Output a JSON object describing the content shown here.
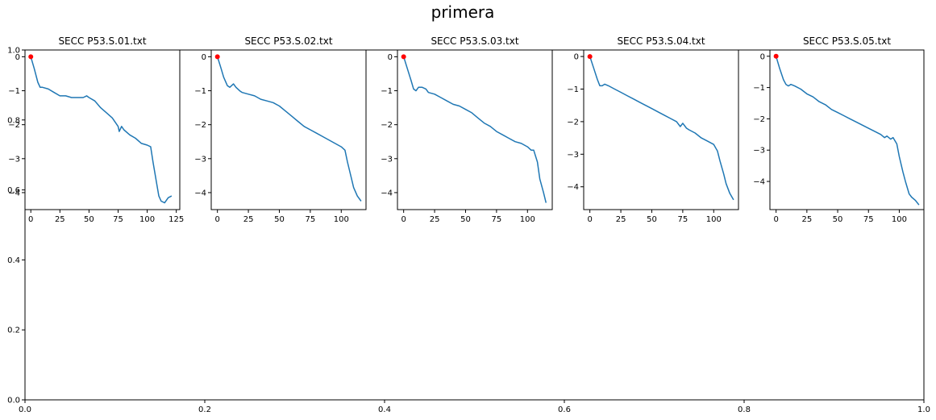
{
  "figure": {
    "suptitle": "primera"
  },
  "background_axis": {
    "xlim": [
      0,
      1
    ],
    "ylim": [
      0,
      1
    ],
    "x_ticks": [
      "0.0",
      "0.2",
      "0.4",
      "0.6",
      "0.8",
      "1.0"
    ],
    "y_ticks": [
      "0.0",
      "0.2",
      "0.4",
      "0.6",
      "0.8",
      "1.0"
    ]
  },
  "colors": {
    "line": "#1f77b4",
    "marker": "#ff0000",
    "axes": "#000000"
  },
  "chart_data": [
    {
      "type": "line",
      "title": "SECC P53.S.01.txt",
      "xlim": [
        -5,
        128
      ],
      "ylim": [
        -4.5,
        0.2
      ],
      "x_ticks": [
        0,
        25,
        50,
        75,
        100,
        125
      ],
      "y_ticks": [
        0,
        -1,
        -2,
        -3,
        -4
      ],
      "marker_point": [
        0,
        0
      ],
      "x": [
        0,
        3,
        6,
        8,
        10,
        15,
        20,
        25,
        30,
        35,
        40,
        45,
        48,
        50,
        55,
        60,
        65,
        70,
        73,
        75,
        76,
        78,
        80,
        85,
        90,
        95,
        100,
        103,
        105,
        108,
        110,
        112,
        115,
        118,
        121
      ],
      "y": [
        0,
        -0.35,
        -0.75,
        -0.9,
        -0.9,
        -0.95,
        -1.05,
        -1.15,
        -1.15,
        -1.2,
        -1.2,
        -1.2,
        -1.15,
        -1.2,
        -1.3,
        -1.5,
        -1.65,
        -1.8,
        -1.95,
        -2.05,
        -2.2,
        -2.05,
        -2.15,
        -2.3,
        -2.4,
        -2.55,
        -2.6,
        -2.65,
        -3.1,
        -3.7,
        -4.1,
        -4.25,
        -4.3,
        -4.15,
        -4.1
      ]
    },
    {
      "type": "line",
      "title": "SECC P53.S.02.txt",
      "xlim": [
        -5,
        120
      ],
      "ylim": [
        -4.5,
        0.2
      ],
      "x_ticks": [
        0,
        25,
        50,
        75,
        100
      ],
      "y_ticks": [
        0,
        -1,
        -2,
        -3,
        -4
      ],
      "marker_point": [
        0,
        0
      ],
      "x": [
        0,
        3,
        5,
        8,
        10,
        13,
        15,
        18,
        20,
        25,
        30,
        35,
        40,
        45,
        50,
        55,
        60,
        65,
        70,
        75,
        80,
        85,
        90,
        95,
        100,
        103,
        105,
        108,
        110,
        113,
        116
      ],
      "y": [
        0,
        -0.35,
        -0.6,
        -0.85,
        -0.9,
        -0.8,
        -0.9,
        -1.0,
        -1.05,
        -1.1,
        -1.15,
        -1.25,
        -1.3,
        -1.35,
        -1.45,
        -1.6,
        -1.75,
        -1.9,
        -2.05,
        -2.15,
        -2.25,
        -2.35,
        -2.45,
        -2.55,
        -2.65,
        -2.75,
        -3.1,
        -3.55,
        -3.85,
        -4.1,
        -4.25
      ]
    },
    {
      "type": "line",
      "title": "SECC P53.S.03.txt",
      "xlim": [
        -5,
        120
      ],
      "ylim": [
        -4.5,
        0.2
      ],
      "x_ticks": [
        0,
        25,
        50,
        75,
        100
      ],
      "y_ticks": [
        0,
        -1,
        -2,
        -3,
        -4
      ],
      "marker_point": [
        0,
        0
      ],
      "x": [
        0,
        3,
        6,
        8,
        10,
        12,
        15,
        18,
        20,
        25,
        30,
        35,
        40,
        45,
        50,
        55,
        60,
        65,
        70,
        75,
        80,
        85,
        90,
        95,
        100,
        103,
        105,
        108,
        110,
        113,
        115
      ],
      "y": [
        0,
        -0.35,
        -0.7,
        -0.95,
        -1.0,
        -0.9,
        -0.9,
        -0.95,
        -1.05,
        -1.1,
        -1.2,
        -1.3,
        -1.4,
        -1.45,
        -1.55,
        -1.65,
        -1.8,
        -1.95,
        -2.05,
        -2.2,
        -2.3,
        -2.4,
        -2.5,
        -2.55,
        -2.65,
        -2.75,
        -2.75,
        -3.1,
        -3.6,
        -4.0,
        -4.3
      ]
    },
    {
      "type": "line",
      "title": "SECC P53.S.04.txt",
      "xlim": [
        -5,
        120
      ],
      "ylim": [
        -4.7,
        0.2
      ],
      "x_ticks": [
        0,
        25,
        50,
        75,
        100
      ],
      "y_ticks": [
        0,
        -1,
        -2,
        -3,
        -4
      ],
      "marker_point": [
        0,
        0
      ],
      "x": [
        0,
        3,
        6,
        8,
        10,
        12,
        15,
        20,
        25,
        30,
        35,
        40,
        45,
        50,
        55,
        60,
        65,
        70,
        73,
        75,
        78,
        80,
        85,
        90,
        95,
        100,
        103,
        105,
        108,
        110,
        113,
        116
      ],
      "y": [
        0,
        -0.35,
        -0.7,
        -0.9,
        -0.9,
        -0.85,
        -0.9,
        -1.0,
        -1.1,
        -1.2,
        -1.3,
        -1.4,
        -1.5,
        -1.6,
        -1.7,
        -1.8,
        -1.9,
        -2.0,
        -2.15,
        -2.05,
        -2.2,
        -2.25,
        -2.35,
        -2.5,
        -2.6,
        -2.7,
        -2.9,
        -3.2,
        -3.6,
        -3.9,
        -4.2,
        -4.4
      ]
    },
    {
      "type": "line",
      "title": "SECC P53.S.05.txt",
      "xlim": [
        -5,
        120
      ],
      "ylim": [
        -4.9,
        0.2
      ],
      "x_ticks": [
        0,
        25,
        50,
        75,
        100
      ],
      "y_ticks": [
        0,
        -1,
        -2,
        -3,
        -4
      ],
      "marker_point": [
        0,
        0
      ],
      "x": [
        0,
        3,
        6,
        8,
        10,
        12,
        15,
        20,
        25,
        30,
        35,
        40,
        45,
        50,
        55,
        60,
        65,
        70,
        75,
        80,
        85,
        88,
        90,
        93,
        95,
        98,
        100,
        103,
        105,
        108,
        110,
        113,
        116
      ],
      "y": [
        0,
        -0.4,
        -0.75,
        -0.9,
        -0.95,
        -0.9,
        -0.95,
        -1.05,
        -1.2,
        -1.3,
        -1.45,
        -1.55,
        -1.7,
        -1.8,
        -1.9,
        -2.0,
        -2.1,
        -2.2,
        -2.3,
        -2.4,
        -2.5,
        -2.6,
        -2.55,
        -2.65,
        -2.6,
        -2.8,
        -3.2,
        -3.7,
        -4.0,
        -4.4,
        -4.5,
        -4.6,
        -4.75
      ]
    }
  ]
}
